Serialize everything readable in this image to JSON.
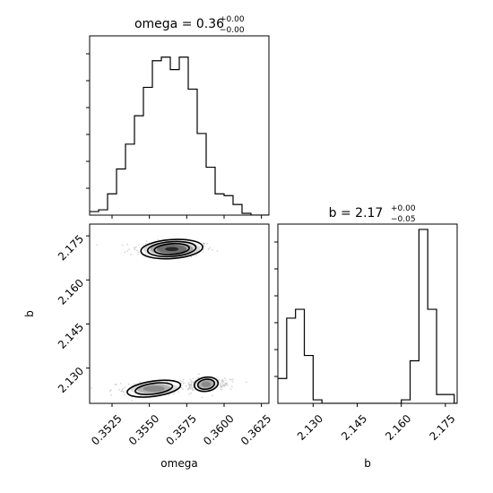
{
  "chart_data": {
    "type": "corner",
    "parameters": [
      "omega",
      "b"
    ],
    "titles": {
      "omega": {
        "name": "omega",
        "value": "0.36",
        "plus": "+0.00",
        "minus": "−0.00"
      },
      "b": {
        "name": "b",
        "value": "2.17",
        "plus": "+0.00",
        "minus": "−0.05"
      }
    },
    "xlabels": {
      "omega": "omega",
      "b": "b"
    },
    "ylabel_2d": "b",
    "omega_range": [
      0.351,
      0.363
    ],
    "b_range": [
      2.118,
      2.179
    ],
    "omega_ticks": [
      "0.3525",
      "0.3550",
      "0.3575",
      "0.3600",
      "0.3625"
    ],
    "b_ticks": [
      "2.130",
      "2.145",
      "2.160",
      "2.175"
    ],
    "omega_hist": {
      "edges": [
        0.351,
        0.3516,
        0.3522,
        0.3528,
        0.3534,
        0.354,
        0.3546,
        0.3552,
        0.3558,
        0.3564,
        0.357,
        0.3576,
        0.3582,
        0.3588,
        0.3594,
        0.36,
        0.3606,
        0.3612,
        0.3618,
        0.3624,
        0.363
      ],
      "counts": [
        0.02,
        0.03,
        0.12,
        0.26,
        0.4,
        0.56,
        0.72,
        0.87,
        0.89,
        0.82,
        0.89,
        0.71,
        0.46,
        0.27,
        0.12,
        0.11,
        0.06,
        0.01,
        0.0,
        0.0
      ],
      "ymax": 1.0
    },
    "b_hist": {
      "edges": [
        2.118,
        2.121,
        2.124,
        2.127,
        2.13,
        2.133,
        2.136,
        2.139,
        2.142,
        2.145,
        2.148,
        2.151,
        2.154,
        2.157,
        2.16,
        2.163,
        2.166,
        2.169,
        2.172,
        2.175,
        2.178,
        2.181
      ],
      "counts": [
        0.14,
        0.48,
        0.53,
        0.27,
        0.02,
        0.0,
        0.0,
        0.0,
        0.0,
        0.0,
        0.0,
        0.0,
        0.0,
        0.0,
        0.02,
        0.24,
        0.98,
        0.53,
        0.05,
        0.05,
        0.0
      ],
      "ymax": 1.0
    },
    "modes_2d": [
      {
        "omega": 0.3565,
        "b": 2.1705,
        "sx": 0.0009,
        "sy": 0.0014,
        "weight": 1.0
      },
      {
        "omega": 0.3553,
        "b": 2.123,
        "sx": 0.0009,
        "sy": 0.0013,
        "weight": 0.45
      },
      {
        "omega": 0.3588,
        "b": 2.1245,
        "sx": 0.0004,
        "sy": 0.0012,
        "weight": 0.45
      }
    ]
  }
}
